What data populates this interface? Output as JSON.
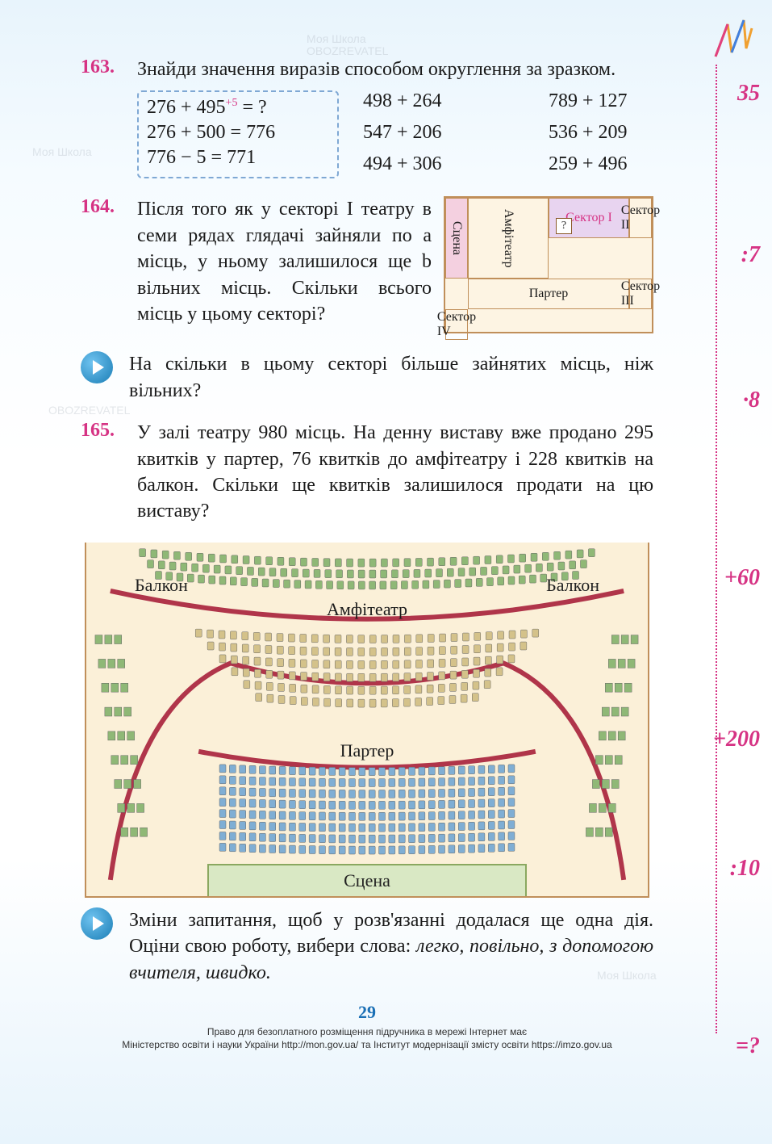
{
  "page_number": "29",
  "side_labels": [
    "35",
    ":7",
    "·8",
    "+60",
    "+200",
    ":10",
    "=?"
  ],
  "task163": {
    "num": "163.",
    "text": "Знайди значення виразів способом округлення за зразком.",
    "example": {
      "line1_a": "276 + 495",
      "line1_sup": "+5",
      "line1_b": " = ?",
      "line2": "276 + 500 = 776",
      "line3": "776 − 5 = 771"
    },
    "col2": [
      "498 + 264",
      "547 + 206",
      "494 + 306"
    ],
    "col3": [
      "789 + 127",
      "536 + 209",
      "259 + 496"
    ]
  },
  "task164": {
    "num": "164.",
    "text": "Після того як у секторі І театру в семи рядах глядачі зайняли по а місць, у ньому залишилося ще b вільних місць. Скільки всього місць у цьому секторі?",
    "diagram": {
      "stage": "Сцена",
      "sector1": "Сектор І",
      "sector2": "Сектор ІІ",
      "parter": "Партер",
      "sector3": "Сектор ІІІ",
      "sector4": "Сектор IV",
      "amph": "Амфітеатр",
      "qmark": "?"
    },
    "sub": "На скільки в цьому секторі більше зайнятих місць, ніж вільних?"
  },
  "task165": {
    "num": "165.",
    "text": "У залі театру 980 місць. На денну виставу вже продано 295 квитків у партер, 76 квитків до амфітеатру і 228 квитків на балкон. Скільки ще квитків залишилося продати на цю виставу?",
    "labels": {
      "balcony": "Балкон",
      "amph": "Амфітеатр",
      "parter": "Партер",
      "stage": "Сцена"
    },
    "sub": "Зміни запитання, щоб у розв'язанні додалася ще одна дія. Оціни свою роботу, вибери слова: легко, повільно, з допомогою вчителя, швидко.",
    "diagram_style": {
      "bg": "#fbf0d8",
      "border": "#c08f5a",
      "balcony_seat": "#8fb876",
      "amph_seat": "#d4c28a",
      "parter_seat": "#7faed4",
      "arc_color": "#b0354a",
      "stage_fill": "#d9e8c4"
    }
  },
  "footer": {
    "line1": "Право для безоплатного розміщення підручника в мережі Інтернет має",
    "line2": "Міністерство освіти і науки України http://mon.gov.ua/ та Інститут модернізації змісту освіти https://imzo.gov.ua"
  },
  "watermarks": [
    "Моя Школа",
    "OBOZREVATEL"
  ]
}
